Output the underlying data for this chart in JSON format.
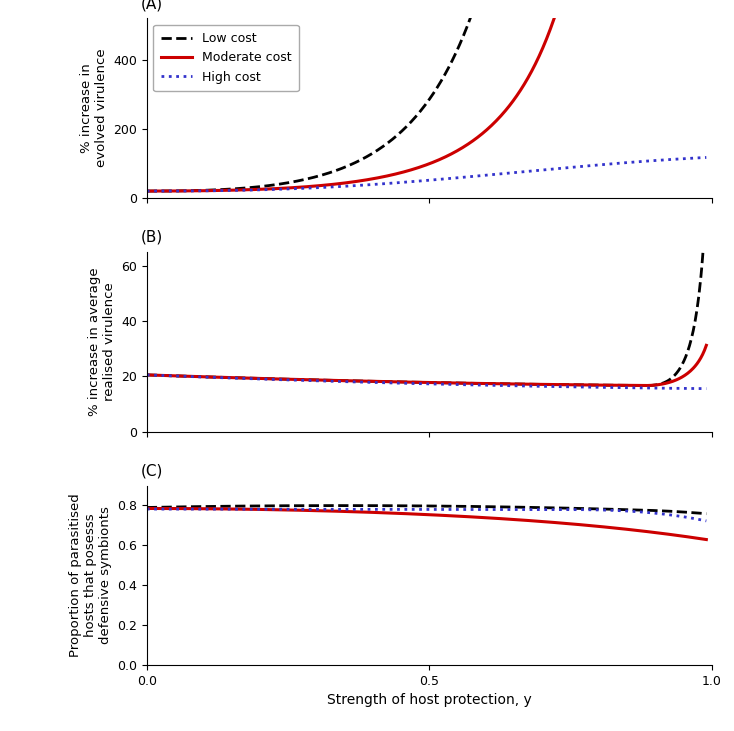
{
  "xlabel": "Strength of host protection, y",
  "panel_labels": [
    "(A)",
    "(B)",
    "(C)"
  ],
  "panel_A_ylabel": "% increase in\nevolved virulence",
  "panel_B_ylabel": "% increase in average\nrealised virulence",
  "panel_C_ylabel": "Proportion of parasitised\nhosts that posesss\ndefensive symbionts",
  "legend_labels": [
    "Low cost",
    "Moderate cost",
    "High cost"
  ],
  "colors": [
    "#000000",
    "#cc0000",
    "#3333cc"
  ],
  "linestyles": [
    "--",
    "-",
    ":"
  ],
  "linewidths": [
    2.0,
    2.2,
    2.0
  ],
  "x_min": 0.0,
  "x_max": 0.99,
  "n_points": 600,
  "panel_A_ylim": [
    0,
    520
  ],
  "panel_B_ylim": [
    0,
    65
  ],
  "panel_C_ylim": [
    0.0,
    0.9
  ],
  "panel_A_yticks": [
    0,
    200,
    400
  ],
  "panel_B_yticks": [
    0,
    20,
    40,
    60
  ],
  "panel_C_yticks": [
    0.0,
    0.2,
    0.4,
    0.6,
    0.8
  ],
  "xticks": [
    0.0,
    0.5,
    1.0
  ],
  "background_color": "#ffffff"
}
